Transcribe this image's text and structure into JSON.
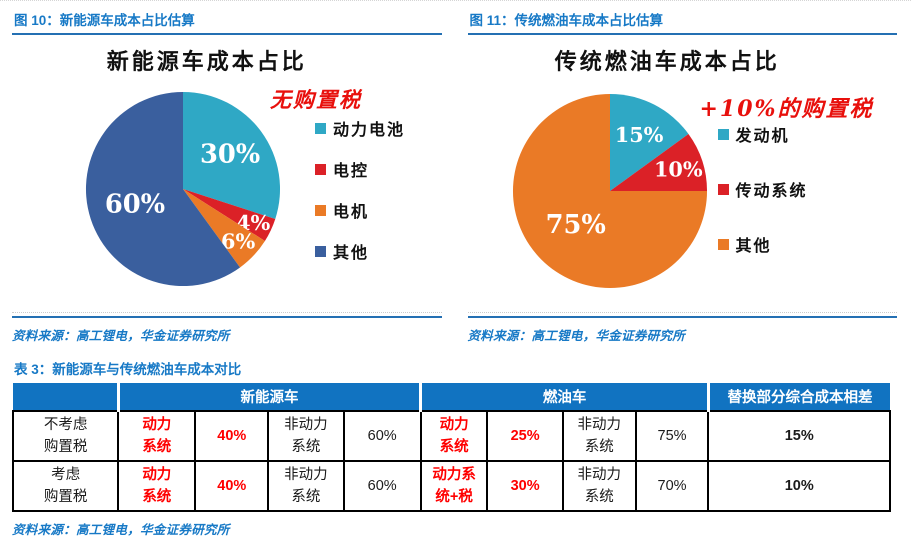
{
  "figure10": {
    "heading": "图 10：新能源车成本占比估算",
    "source": "资料来源：高工锂电，华金证券研究所"
  },
  "figure11": {
    "heading": "图 11：传统燃油车成本占比估算",
    "source": "资料来源：高工锂电，华金证券研究所"
  },
  "chart_data": [
    {
      "type": "pie",
      "title": "新能源车成本占比",
      "annotation": "无购置税",
      "legend_position": "right",
      "legend_gap": 17,
      "start_angle_deg": 0,
      "slices": [
        {
          "label": "动力电池",
          "value": 30,
          "pct_label": "30%",
          "color": "#2FA8C5",
          "label_r": 0.6
        },
        {
          "label": "电控",
          "value": 4,
          "pct_label": "4%",
          "color": "#DB2127",
          "label_r": 0.8
        },
        {
          "label": "电机",
          "value": 6,
          "pct_label": "6%",
          "color": "#EA7A26",
          "label_r": 0.78
        },
        {
          "label": "其他",
          "value": 60,
          "pct_label": "60%",
          "color": "#3A5F9E",
          "label_r": 0.52
        }
      ]
    },
    {
      "type": "pie",
      "title": "传统燃油车成本占比",
      "annotation": "+10%的购置税",
      "legend_position": "right",
      "legend_gap": 31,
      "start_angle_deg": 0,
      "slices": [
        {
          "label": "发动机",
          "value": 15,
          "pct_label": "15%",
          "color": "#2FA8C5",
          "label_r": 0.66
        },
        {
          "label": "传动系统",
          "value": 10,
          "pct_label": "10%",
          "color": "#DB2127",
          "label_r": 0.74
        },
        {
          "label": "其他",
          "value": 75,
          "pct_label": "75%",
          "color": "#EA7A26",
          "label_r": 0.5
        }
      ]
    }
  ],
  "table": {
    "title": "表 3：新能源车与传统燃油车成本对比",
    "source": "资料来源：高工锂电，华金证券研究所",
    "header_groups": [
      {
        "label": "",
        "colspan": 1
      },
      {
        "label": "新能源车",
        "colspan": 4
      },
      {
        "label": "燃油车",
        "colspan": 4
      },
      {
        "label": "替换部分综合成本相差",
        "colspan": 1
      }
    ],
    "rows": [
      {
        "label": "不考虑\n购置税",
        "cells": [
          {
            "text": "动力\n系统",
            "style": "red"
          },
          {
            "text": "40%",
            "style": "red"
          },
          {
            "text": "非动力\n系统",
            "style": "plain"
          },
          {
            "text": "60%",
            "style": "plain"
          },
          {
            "text": "动力\n系统",
            "style": "red"
          },
          {
            "text": "25%",
            "style": "red"
          },
          {
            "text": "非动力\n系统",
            "style": "plain"
          },
          {
            "text": "75%",
            "style": "plain"
          },
          {
            "text": "15%",
            "style": "bold"
          }
        ]
      },
      {
        "label": "考虑\n购置税",
        "cells": [
          {
            "text": "动力\n系统",
            "style": "red"
          },
          {
            "text": "40%",
            "style": "red"
          },
          {
            "text": "非动力\n系统",
            "style": "plain"
          },
          {
            "text": "60%",
            "style": "plain"
          },
          {
            "text": "动力系\n统+税",
            "style": "red"
          },
          {
            "text": "30%",
            "style": "red"
          },
          {
            "text": "非动力\n系统",
            "style": "plain"
          },
          {
            "text": "70%",
            "style": "plain"
          },
          {
            "text": "10%",
            "style": "bold"
          }
        ]
      }
    ]
  },
  "colors": {
    "heading_blue": "#1779C6",
    "rule_blue": "#2470B3",
    "table_header_bg": "#1173C1",
    "annotation_red": "#E8100C",
    "table_red": "#FF0000"
  }
}
